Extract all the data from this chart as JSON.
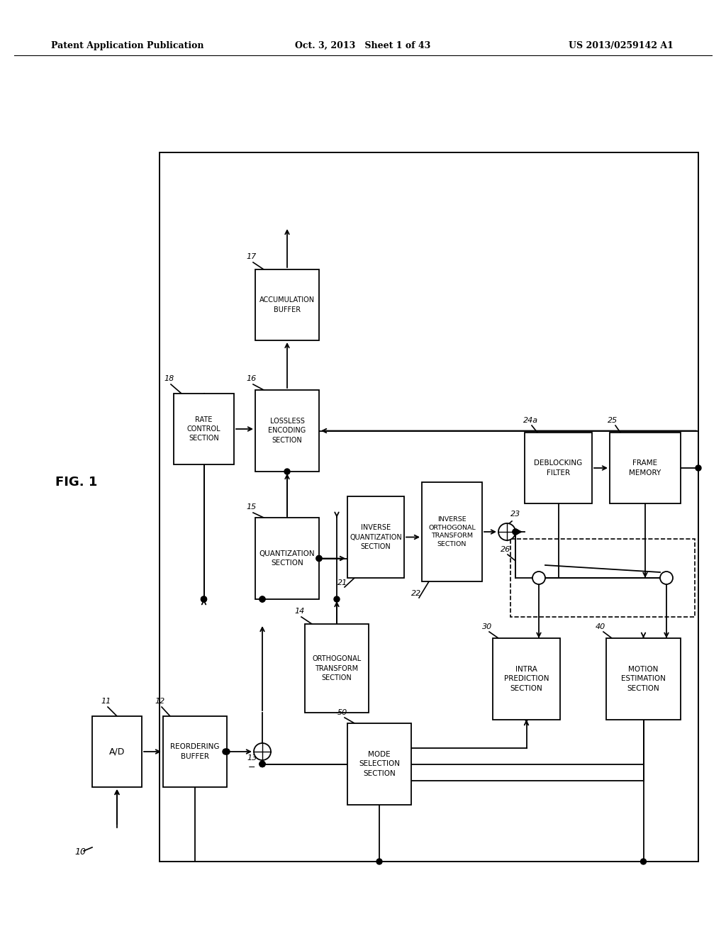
{
  "header_left": "Patent Application Publication",
  "header_mid": "Oct. 3, 2013   Sheet 1 of 43",
  "header_right": "US 2013/0259142 A1",
  "bg_color": "#ffffff"
}
